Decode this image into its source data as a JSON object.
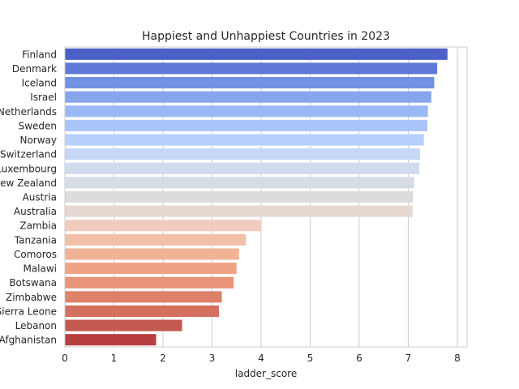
{
  "chart_data": {
    "type": "bar",
    "orientation": "horizontal",
    "title": "Happiest and Unhappiest Countries in 2023",
    "xlabel": "ladder_score",
    "ylabel": "",
    "xlim": [
      0,
      8.2
    ],
    "xticks": [
      0,
      1,
      2,
      3,
      4,
      5,
      6,
      7,
      8
    ],
    "grid": true,
    "categories": [
      "Finland",
      "Denmark",
      "Iceland",
      "Israel",
      "Netherlands",
      "Sweden",
      "Norway",
      "Switzerland",
      "Luxembourg",
      "New Zealand",
      "Austria",
      "Australia",
      "Zambia",
      "Tanzania",
      "Comoros",
      "Malawi",
      "Botswana",
      "Zimbabwe",
      "Sierra Leone",
      "Lebanon",
      "Afghanistan"
    ],
    "values": [
      7.8,
      7.59,
      7.53,
      7.47,
      7.4,
      7.39,
      7.32,
      7.24,
      7.23,
      7.12,
      7.1,
      7.09,
      4.0,
      3.69,
      3.55,
      3.5,
      3.44,
      3.2,
      3.14,
      2.39,
      1.86
    ],
    "colors": [
      "#4c60c5",
      "#5f7ad6",
      "#7291e2",
      "#87a5ed",
      "#9ab8f4",
      "#a9c5f9",
      "#b7d0fb",
      "#c6d8f8",
      "#d2dbee",
      "#d6dce4",
      "#dcdcdc",
      "#e6d9d2",
      "#efccbe",
      "#f2bfa8",
      "#f1b396",
      "#efa386",
      "#e89377",
      "#dd8269",
      "#d3705e",
      "#c25a50",
      "#b73f40"
    ]
  }
}
